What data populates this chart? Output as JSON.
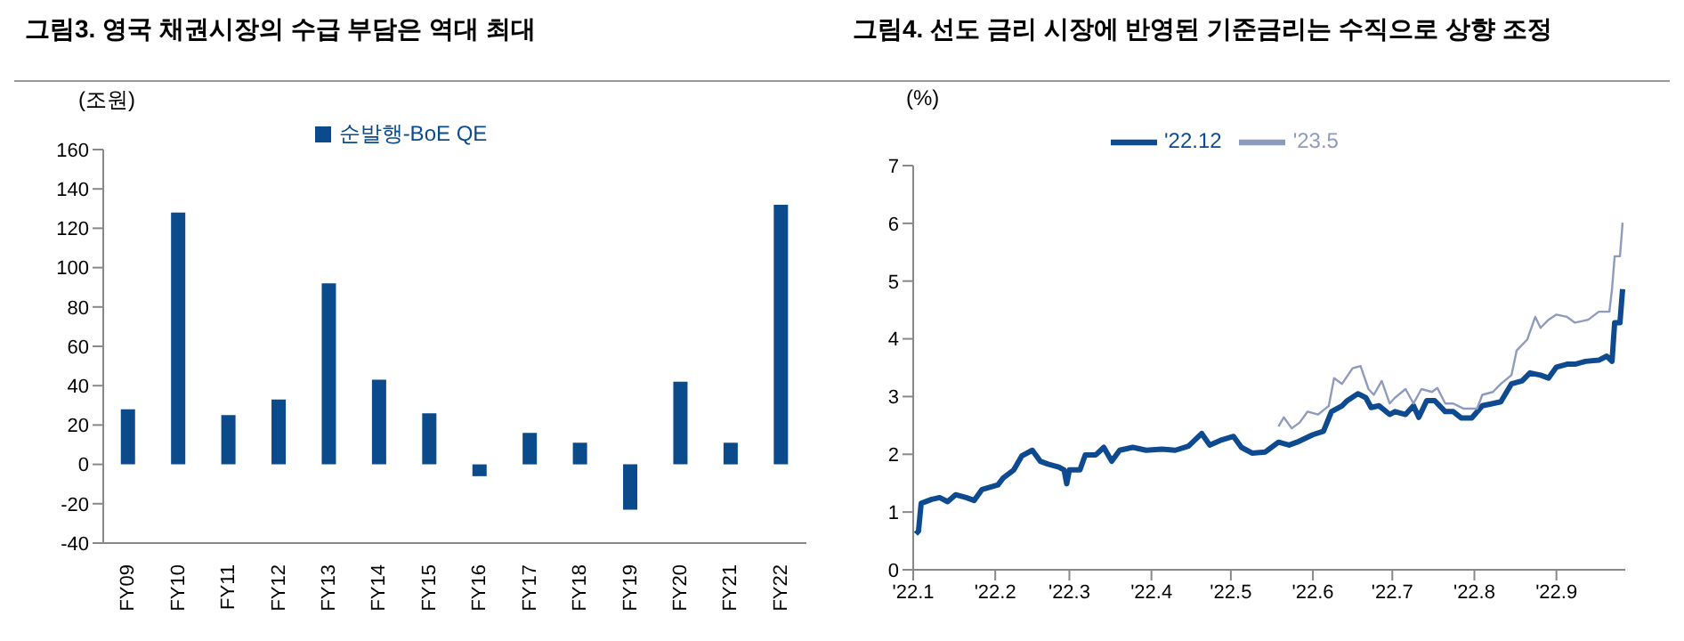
{
  "chart_data": [
    {
      "type": "bar",
      "title": "그림3. 영국 채권시장의 수급 부담은 역대 최대",
      "ylabel": "(조원)",
      "categories": [
        "FY09",
        "FY10",
        "FY11",
        "FY12",
        "FY13",
        "FY14",
        "FY15",
        "FY16",
        "FY17",
        "FY18",
        "FY19",
        "FY20",
        "FY21",
        "FY22"
      ],
      "series": [
        {
          "name": "순발행-BoE QE",
          "color": "#0b4a8b",
          "values": [
            28,
            128,
            25,
            33,
            92,
            43,
            26,
            -6,
            16,
            11,
            -23,
            42,
            11,
            132
          ]
        }
      ],
      "ylim": [
        -40,
        160
      ],
      "yticks": [
        -40,
        -20,
        0,
        20,
        40,
        60,
        80,
        100,
        120,
        140,
        160
      ],
      "grid": false,
      "legend": "top"
    },
    {
      "type": "line",
      "title": "그림4. 선도 금리 시장에 반영된 기준금리는 수직으로 상향 조정",
      "ylabel": "(%)",
      "series": [
        {
          "name": "'22.12",
          "color": "#0d4a8f",
          "x": [
            "2022-01-02",
            "2022-01-03",
            "2022-01-04",
            "2022-01-08",
            "2022-01-11",
            "2022-01-14",
            "2022-01-17",
            "2022-01-21",
            "2022-01-24",
            "2022-01-27",
            "2022-02-02",
            "2022-02-04",
            "2022-02-08",
            "2022-02-11",
            "2022-02-15",
            "2022-02-18",
            "2022-02-21",
            "2022-02-25",
            "2022-02-27",
            "2022-02-28",
            "2022-03-01",
            "2022-03-05",
            "2022-03-07",
            "2022-03-11",
            "2022-03-14",
            "2022-03-17",
            "2022-03-20",
            "2022-03-25",
            "2022-03-30",
            "2022-04-05",
            "2022-04-10",
            "2022-04-15",
            "2022-04-20",
            "2022-04-23",
            "2022-04-27",
            "2022-05-02",
            "2022-05-05",
            "2022-05-09",
            "2022-05-14",
            "2022-05-19",
            "2022-05-23",
            "2022-05-26",
            "2022-06-01",
            "2022-06-05",
            "2022-06-08",
            "2022-06-12",
            "2022-06-14",
            "2022-06-18",
            "2022-06-21",
            "2022-06-23",
            "2022-06-26",
            "2022-06-30",
            "2022-07-02",
            "2022-07-06",
            "2022-07-09",
            "2022-07-11",
            "2022-07-14",
            "2022-07-17",
            "2022-07-21",
            "2022-07-24",
            "2022-07-27",
            "2022-07-31",
            "2022-08-04",
            "2022-08-08",
            "2022-08-11",
            "2022-08-15",
            "2022-08-19",
            "2022-08-22",
            "2022-08-26",
            "2022-08-29",
            "2022-09-01",
            "2022-09-05",
            "2022-09-08",
            "2022-09-12",
            "2022-09-17",
            "2022-09-20",
            "2022-09-22",
            "2022-09-23",
            "2022-09-25",
            "2022-09-26"
          ],
          "values": [
            0.62,
            0.67,
            1.15,
            1.22,
            1.25,
            1.18,
            1.3,
            1.25,
            1.2,
            1.39,
            1.47,
            1.59,
            1.73,
            1.97,
            2.07,
            1.88,
            1.83,
            1.78,
            1.73,
            1.49,
            1.73,
            1.73,
            1.99,
            1.99,
            2.12,
            1.88,
            2.07,
            2.12,
            2.07,
            2.09,
            2.07,
            2.14,
            2.36,
            2.16,
            2.24,
            2.31,
            2.12,
            2.02,
            2.04,
            2.21,
            2.16,
            2.21,
            2.34,
            2.4,
            2.74,
            2.84,
            2.93,
            3.05,
            2.98,
            2.81,
            2.84,
            2.69,
            2.74,
            2.69,
            2.84,
            2.64,
            2.93,
            2.93,
            2.74,
            2.74,
            2.63,
            2.63,
            2.84,
            2.88,
            2.91,
            3.22,
            3.27,
            3.41,
            3.37,
            3.32,
            3.51,
            3.56,
            3.56,
            3.61,
            3.63,
            3.7,
            3.61,
            4.28,
            4.28,
            4.86
          ]
        },
        {
          "name": "'23.5",
          "color": "#8e9bbd",
          "x": [
            "2022-05-19",
            "2022-05-21",
            "2022-05-24",
            "2022-05-27",
            "2022-05-30",
            "2022-06-03",
            "2022-06-07",
            "2022-06-09",
            "2022-06-12",
            "2022-06-16",
            "2022-06-19",
            "2022-06-22",
            "2022-06-24",
            "2022-06-27",
            "2022-06-30",
            "2022-07-02",
            "2022-07-06",
            "2022-07-09",
            "2022-07-12",
            "2022-07-16",
            "2022-07-18",
            "2022-07-21",
            "2022-07-24",
            "2022-07-28",
            "2022-08-02",
            "2022-08-04",
            "2022-08-08",
            "2022-08-11",
            "2022-08-15",
            "2022-08-17",
            "2022-08-21",
            "2022-08-24",
            "2022-08-26",
            "2022-08-29",
            "2022-09-01",
            "2022-09-05",
            "2022-09-08",
            "2022-09-13",
            "2022-09-17",
            "2022-09-21",
            "2022-09-22",
            "2022-09-23",
            "2022-09-25",
            "2022-09-26"
          ],
          "values": [
            2.48,
            2.64,
            2.45,
            2.55,
            2.74,
            2.69,
            2.84,
            3.32,
            3.22,
            3.49,
            3.53,
            3.13,
            3.03,
            3.27,
            2.88,
            2.98,
            3.13,
            2.88,
            3.13,
            3.08,
            3.15,
            2.88,
            2.88,
            2.79,
            2.79,
            3.03,
            3.08,
            3.22,
            3.37,
            3.8,
            3.99,
            4.38,
            4.19,
            4.33,
            4.42,
            4.38,
            4.28,
            4.33,
            4.47,
            4.47,
            4.86,
            5.43,
            5.43,
            6.01
          ]
        }
      ],
      "xlim": [
        "2022-01-01",
        "2022-09-27"
      ],
      "xticks": [
        {
          "value": "2022-01-01",
          "label": "'22.1"
        },
        {
          "value": "2022-02-01",
          "label": "'22.2"
        },
        {
          "value": "2022-03-01",
          "label": "'22.3"
        },
        {
          "value": "2022-04-01",
          "label": "'22.4"
        },
        {
          "value": "2022-05-01",
          "label": "'22.5"
        },
        {
          "value": "2022-06-01",
          "label": "'22.6"
        },
        {
          "value": "2022-07-01",
          "label": "'22.7"
        },
        {
          "value": "2022-08-01",
          "label": "'22.8"
        },
        {
          "value": "2022-09-01",
          "label": "'22.9"
        }
      ],
      "ylim": [
        0,
        7
      ],
      "yticks": [
        0,
        1,
        2,
        3,
        4,
        5,
        6,
        7
      ],
      "grid": false,
      "legend": "top",
      "marker": "none"
    }
  ]
}
